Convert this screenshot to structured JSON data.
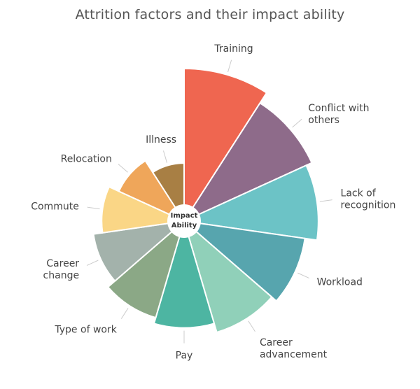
{
  "chart_data": {
    "type": "polar-area",
    "title": "Attrition factors and their impact ability",
    "center_label": [
      "Impact",
      "Ability"
    ],
    "max_value": 10,
    "slices": [
      {
        "label": [
          "Training"
        ],
        "value": 10,
        "color": "#EF6650"
      },
      {
        "label": [
          "Conflict with",
          "others"
        ],
        "value": 9.2,
        "color": "#8E6B8A"
      },
      {
        "label": [
          "Lack of",
          "recognition"
        ],
        "value": 8.8,
        "color": "#6CC3C6"
      },
      {
        "label": [
          "Workload"
        ],
        "value": 8.0,
        "color": "#57A5AE"
      },
      {
        "label": [
          "Career",
          "advancement"
        ],
        "value": 7.6,
        "color": "#90D0B9"
      },
      {
        "label": [
          "Pay"
        ],
        "value": 7.0,
        "color": "#4DB5A2"
      },
      {
        "label": [
          "Type of work"
        ],
        "value": 6.6,
        "color": "#8BA886"
      },
      {
        "label": [
          "Career",
          "change"
        ],
        "value": 6.0,
        "color": "#A3B2AB"
      },
      {
        "label": [
          "Commute"
        ],
        "value": 5.4,
        "color": "#FAD686"
      },
      {
        "label": [
          "Relocation"
        ],
        "value": 4.7,
        "color": "#EFA65A"
      },
      {
        "label": [
          "Illness"
        ],
        "value": 3.8,
        "color": "#A87F44"
      }
    ]
  }
}
